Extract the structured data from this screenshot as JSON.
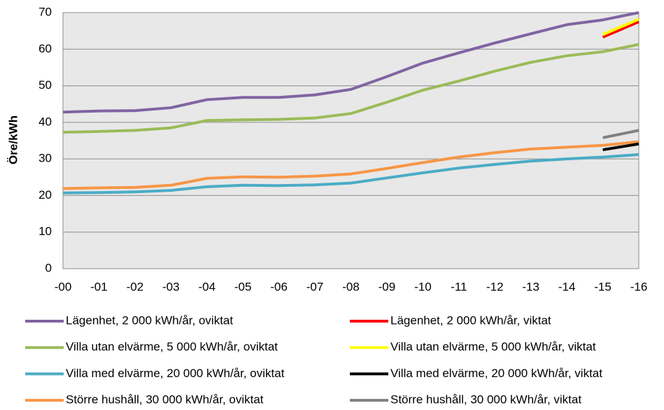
{
  "chart_data": {
    "type": "line",
    "y_label": "Öre/kWh",
    "categories": [
      "-00",
      "-01",
      "-02",
      "-03",
      "-04",
      "-05",
      "-06",
      "-07",
      "-08",
      "-09",
      "-10",
      "-11",
      "-12",
      "-13",
      "-14",
      "-15",
      "-16"
    ],
    "ylim": [
      0,
      70
    ],
    "yticks": [
      0,
      10,
      20,
      30,
      40,
      50,
      60,
      70
    ],
    "grid": true,
    "series": [
      {
        "name": "Lägenhet, 2 000 kWh/år, oviktat",
        "color": "#8064a2",
        "values": [
          42.8,
          43.1,
          43.2,
          44.0,
          46.2,
          46.8,
          46.8,
          47.5,
          49.0,
          52.5,
          56.2,
          59.0,
          61.7,
          64.2,
          66.7,
          68.0,
          70.0
        ]
      },
      {
        "name": "Villa utan elvärme, 5 000 kWh/år, oviktat",
        "color": "#9bbb59",
        "values": [
          37.3,
          37.5,
          37.8,
          38.5,
          40.5,
          40.7,
          40.8,
          41.2,
          42.4,
          45.5,
          48.8,
          51.3,
          54.0,
          56.4,
          58.2,
          59.3,
          61.3
        ]
      },
      {
        "name": "Villa med elvärme, 20 000 kWh/år, oviktat",
        "color": "#4bacc6",
        "values": [
          20.7,
          20.8,
          21.0,
          21.4,
          22.4,
          22.8,
          22.7,
          22.9,
          23.4,
          24.8,
          26.2,
          27.5,
          28.5,
          29.4,
          30.0,
          30.5,
          31.2
        ]
      },
      {
        "name": "Större hushåll, 30 000 kWh/år, oviktat",
        "color": "#f79646",
        "values": [
          21.9,
          22.1,
          22.2,
          22.8,
          24.7,
          25.1,
          25.0,
          25.3,
          25.9,
          27.4,
          29.0,
          30.5,
          31.7,
          32.7,
          33.2,
          33.7,
          34.7
        ]
      },
      {
        "name": "Lägenhet, 2 000 kWh/år, viktat",
        "color": "#ff0000",
        "values": [
          null,
          null,
          null,
          null,
          null,
          null,
          null,
          null,
          null,
          null,
          null,
          null,
          null,
          null,
          null,
          63.3,
          67.5
        ]
      },
      {
        "name": "Villa utan elvärme, 5 000 kWh/år, viktat",
        "color": "#ffff00",
        "values": [
          null,
          null,
          null,
          null,
          null,
          null,
          null,
          null,
          null,
          null,
          null,
          null,
          null,
          null,
          null,
          64.0,
          68.2
        ]
      },
      {
        "name": "Villa med elvärme, 20 000 kWh/år, viktat",
        "color": "#000000",
        "values": [
          null,
          null,
          null,
          null,
          null,
          null,
          null,
          null,
          null,
          null,
          null,
          null,
          null,
          null,
          null,
          32.5,
          34.1
        ]
      },
      {
        "name": "Större hushåll, 30 000 kWh/år, viktat",
        "color": "#808080",
        "values": [
          null,
          null,
          null,
          null,
          null,
          null,
          null,
          null,
          null,
          null,
          null,
          null,
          null,
          null,
          null,
          35.8,
          37.8
        ]
      }
    ]
  }
}
